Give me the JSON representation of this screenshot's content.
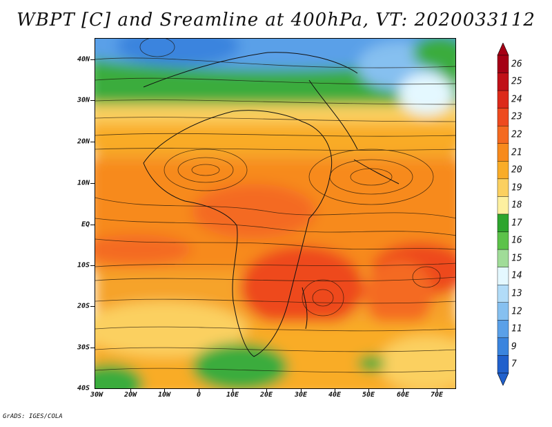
{
  "title": "WBPT [C] and Sreamline at 400hPa, VT: 2020033112",
  "credit": "GrADS: IGES/COLA",
  "y_axis": {
    "labels": [
      "40N",
      "30N",
      "20N",
      "10N",
      "EQ",
      "10S",
      "20S",
      "30S",
      "40S"
    ]
  },
  "x_axis": {
    "labels": [
      "30W",
      "20W",
      "10W",
      "0",
      "10E",
      "20E",
      "30E",
      "40E",
      "50E",
      "60E",
      "70E"
    ]
  },
  "colorbar": {
    "labels": [
      "26",
      "25",
      "24",
      "23",
      "22",
      "21",
      "20",
      "19",
      "18",
      "17",
      "16",
      "15",
      "14",
      "13",
      "12",
      "11",
      "9",
      "7"
    ],
    "colors": [
      "#a50015",
      "#c01018",
      "#dc2a1a",
      "#ee4a1e",
      "#f46a20",
      "#f78a1c",
      "#f9ac28",
      "#fbd060",
      "#fdf0a0",
      "#2da52e",
      "#5cc24a",
      "#a0dc98",
      "#e4f8ff",
      "#b2dcf8",
      "#86c0f0",
      "#5aa0e8",
      "#3a84de",
      "#2060cc"
    ]
  },
  "legend_field": "WBPT [C]",
  "level": "400hPa",
  "valid_time": "2020033112"
}
